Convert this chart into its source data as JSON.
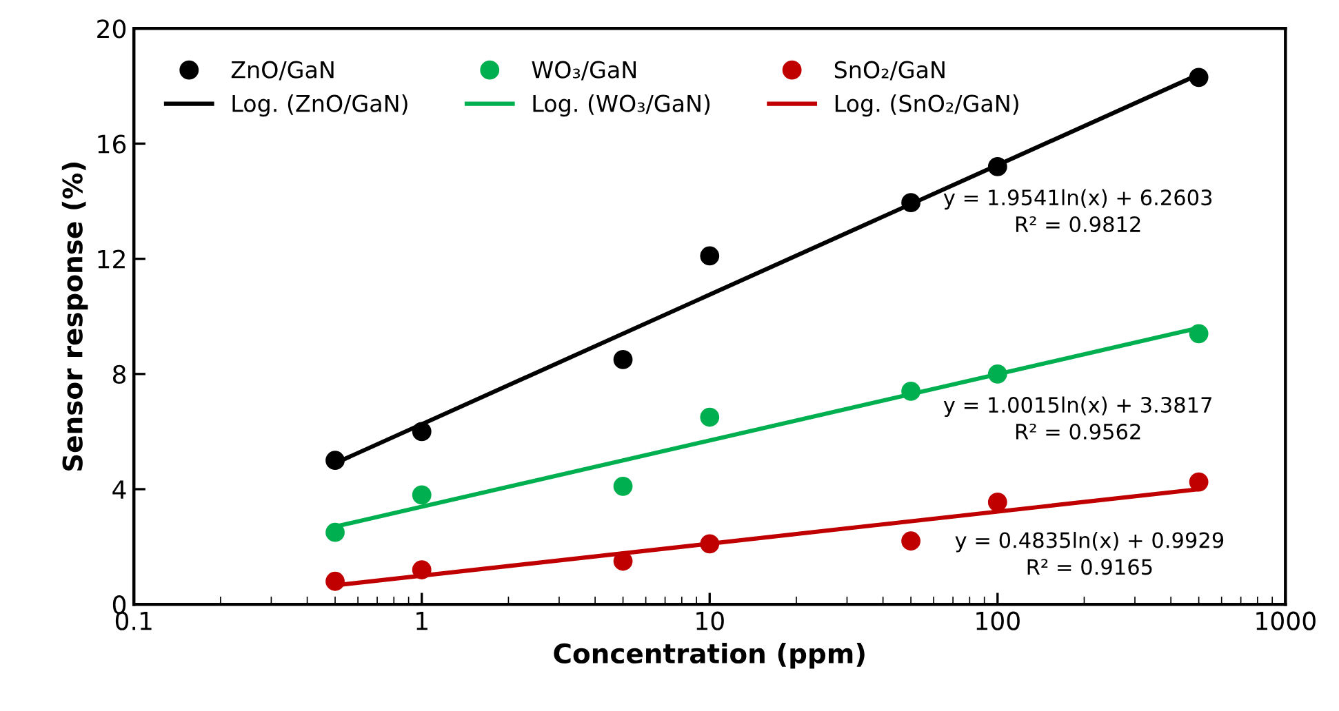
{
  "chart_data": {
    "type": "scatter",
    "xlabel": "Concentration (ppm)",
    "ylabel": "Sensor response (%)",
    "xlim": [
      0.1,
      1000
    ],
    "xticks": [
      0.1,
      1,
      10,
      100,
      1000
    ],
    "ylim": [
      0,
      20
    ],
    "yticks": [
      0,
      4,
      8,
      12,
      16,
      20
    ],
    "log": "x",
    "grid": false,
    "legend": "top left",
    "series": [
      {
        "name": "ZnO/GaN",
        "marker": "circle",
        "color": "#000000",
        "x": [
          0.5,
          1,
          5,
          10,
          50,
          100,
          500
        ],
        "values": [
          5.0,
          6.0,
          8.5,
          12.1,
          13.95,
          15.2,
          18.3
        ]
      },
      {
        "name": "Log. (ZnO/GaN)",
        "type": "line",
        "color": "#000000",
        "x": [
          0.5,
          500
        ],
        "values": [
          4.9,
          18.4
        ]
      },
      {
        "name": "WO₃/GaN",
        "marker": "circle",
        "color": "#00b050",
        "x": [
          0.5,
          1,
          5,
          10,
          50,
          100,
          500
        ],
        "values": [
          2.5,
          3.8,
          4.1,
          6.5,
          7.4,
          8.0,
          9.4
        ]
      },
      {
        "name": "Log. (WO₃/GaN)",
        "type": "line",
        "color": "#00b050",
        "x": [
          0.5,
          500
        ],
        "values": [
          2.7,
          9.6
        ]
      },
      {
        "name": "SnO₂/GaN",
        "marker": "circle",
        "color": "#c00000",
        "x": [
          0.5,
          1,
          5,
          10,
          50,
          100,
          500
        ],
        "values": [
          0.8,
          1.2,
          1.5,
          2.1,
          2.2,
          3.55,
          4.25
        ]
      },
      {
        "name": "Log. (SnO₂/GaN)",
        "type": "line",
        "color": "#c00000",
        "x": [
          0.5,
          500
        ],
        "values": [
          0.66,
          4.0
        ]
      }
    ],
    "annotations": [
      "y = 1.9541ln(x) + 6.2603\nR² = 0.9812",
      "y = 1.0015ln(x) + 3.3817\nR² = 0.9562",
      "y = 0.4835ln(x) + 0.9929\nR² = 0.9165"
    ]
  }
}
